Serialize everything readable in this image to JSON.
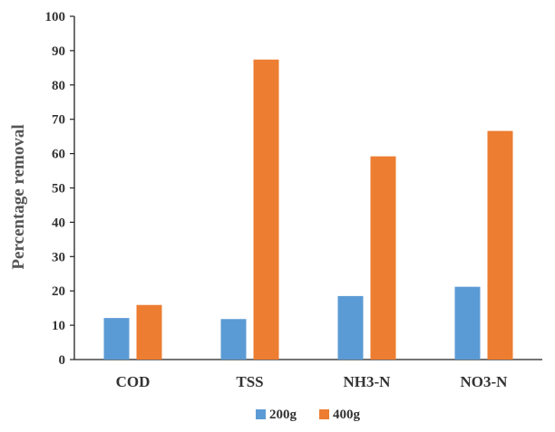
{
  "chart_data": {
    "type": "bar",
    "title": "",
    "xlabel": "",
    "ylabel": "Percentage removal",
    "categories": [
      "COD",
      "TSS",
      "NH3-N",
      "NO3-N"
    ],
    "series": [
      {
        "name": "200g",
        "values": [
          12.1,
          11.8,
          18.5,
          21.2
        ],
        "color": "#5B9BD5"
      },
      {
        "name": "400g",
        "values": [
          15.9,
          87.4,
          59.2,
          66.6
        ],
        "color": "#ED7D31"
      }
    ],
    "ylim": [
      0,
      100
    ],
    "yticks": [
      0,
      10,
      20,
      30,
      40,
      50,
      60,
      70,
      80,
      90,
      100
    ],
    "grid": false,
    "legend_position": "bottom-center"
  }
}
